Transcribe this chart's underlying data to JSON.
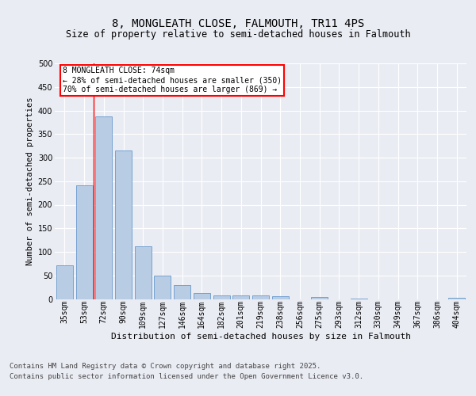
{
  "title": "8, MONGLEATH CLOSE, FALMOUTH, TR11 4PS",
  "subtitle": "Size of property relative to semi-detached houses in Falmouth",
  "xlabel": "Distribution of semi-detached houses by size in Falmouth",
  "ylabel": "Number of semi-detached properties",
  "categories": [
    "35sqm",
    "53sqm",
    "72sqm",
    "90sqm",
    "109sqm",
    "127sqm",
    "146sqm",
    "164sqm",
    "182sqm",
    "201sqm",
    "219sqm",
    "238sqm",
    "256sqm",
    "275sqm",
    "293sqm",
    "312sqm",
    "330sqm",
    "349sqm",
    "367sqm",
    "386sqm",
    "404sqm"
  ],
  "values": [
    72,
    242,
    387,
    315,
    112,
    50,
    30,
    13,
    7,
    7,
    8,
    6,
    0,
    5,
    0,
    1,
    0,
    0,
    0,
    0,
    3
  ],
  "bar_color": "#b8cce4",
  "bar_edge_color": "#6699cc",
  "red_line_index": 1.5,
  "annotation_label": "8 MONGLEATH CLOSE: 74sqm",
  "annotation_smaller": "← 28% of semi-detached houses are smaller (350)",
  "annotation_larger": "70% of semi-detached houses are larger (869) →",
  "footer_line1": "Contains HM Land Registry data © Crown copyright and database right 2025.",
  "footer_line2": "Contains public sector information licensed under the Open Government Licence v3.0.",
  "ylim": [
    0,
    500
  ],
  "yticks": [
    0,
    50,
    100,
    150,
    200,
    250,
    300,
    350,
    400,
    450,
    500
  ],
  "bg_color": "#eaecf4",
  "plot_bg_color": "#eaecf4",
  "title_fontsize": 10,
  "subtitle_fontsize": 8.5,
  "ylabel_fontsize": 7.5,
  "xlabel_fontsize": 8,
  "tick_fontsize": 7,
  "footer_fontsize": 6.5,
  "ann_fontsize": 7
}
